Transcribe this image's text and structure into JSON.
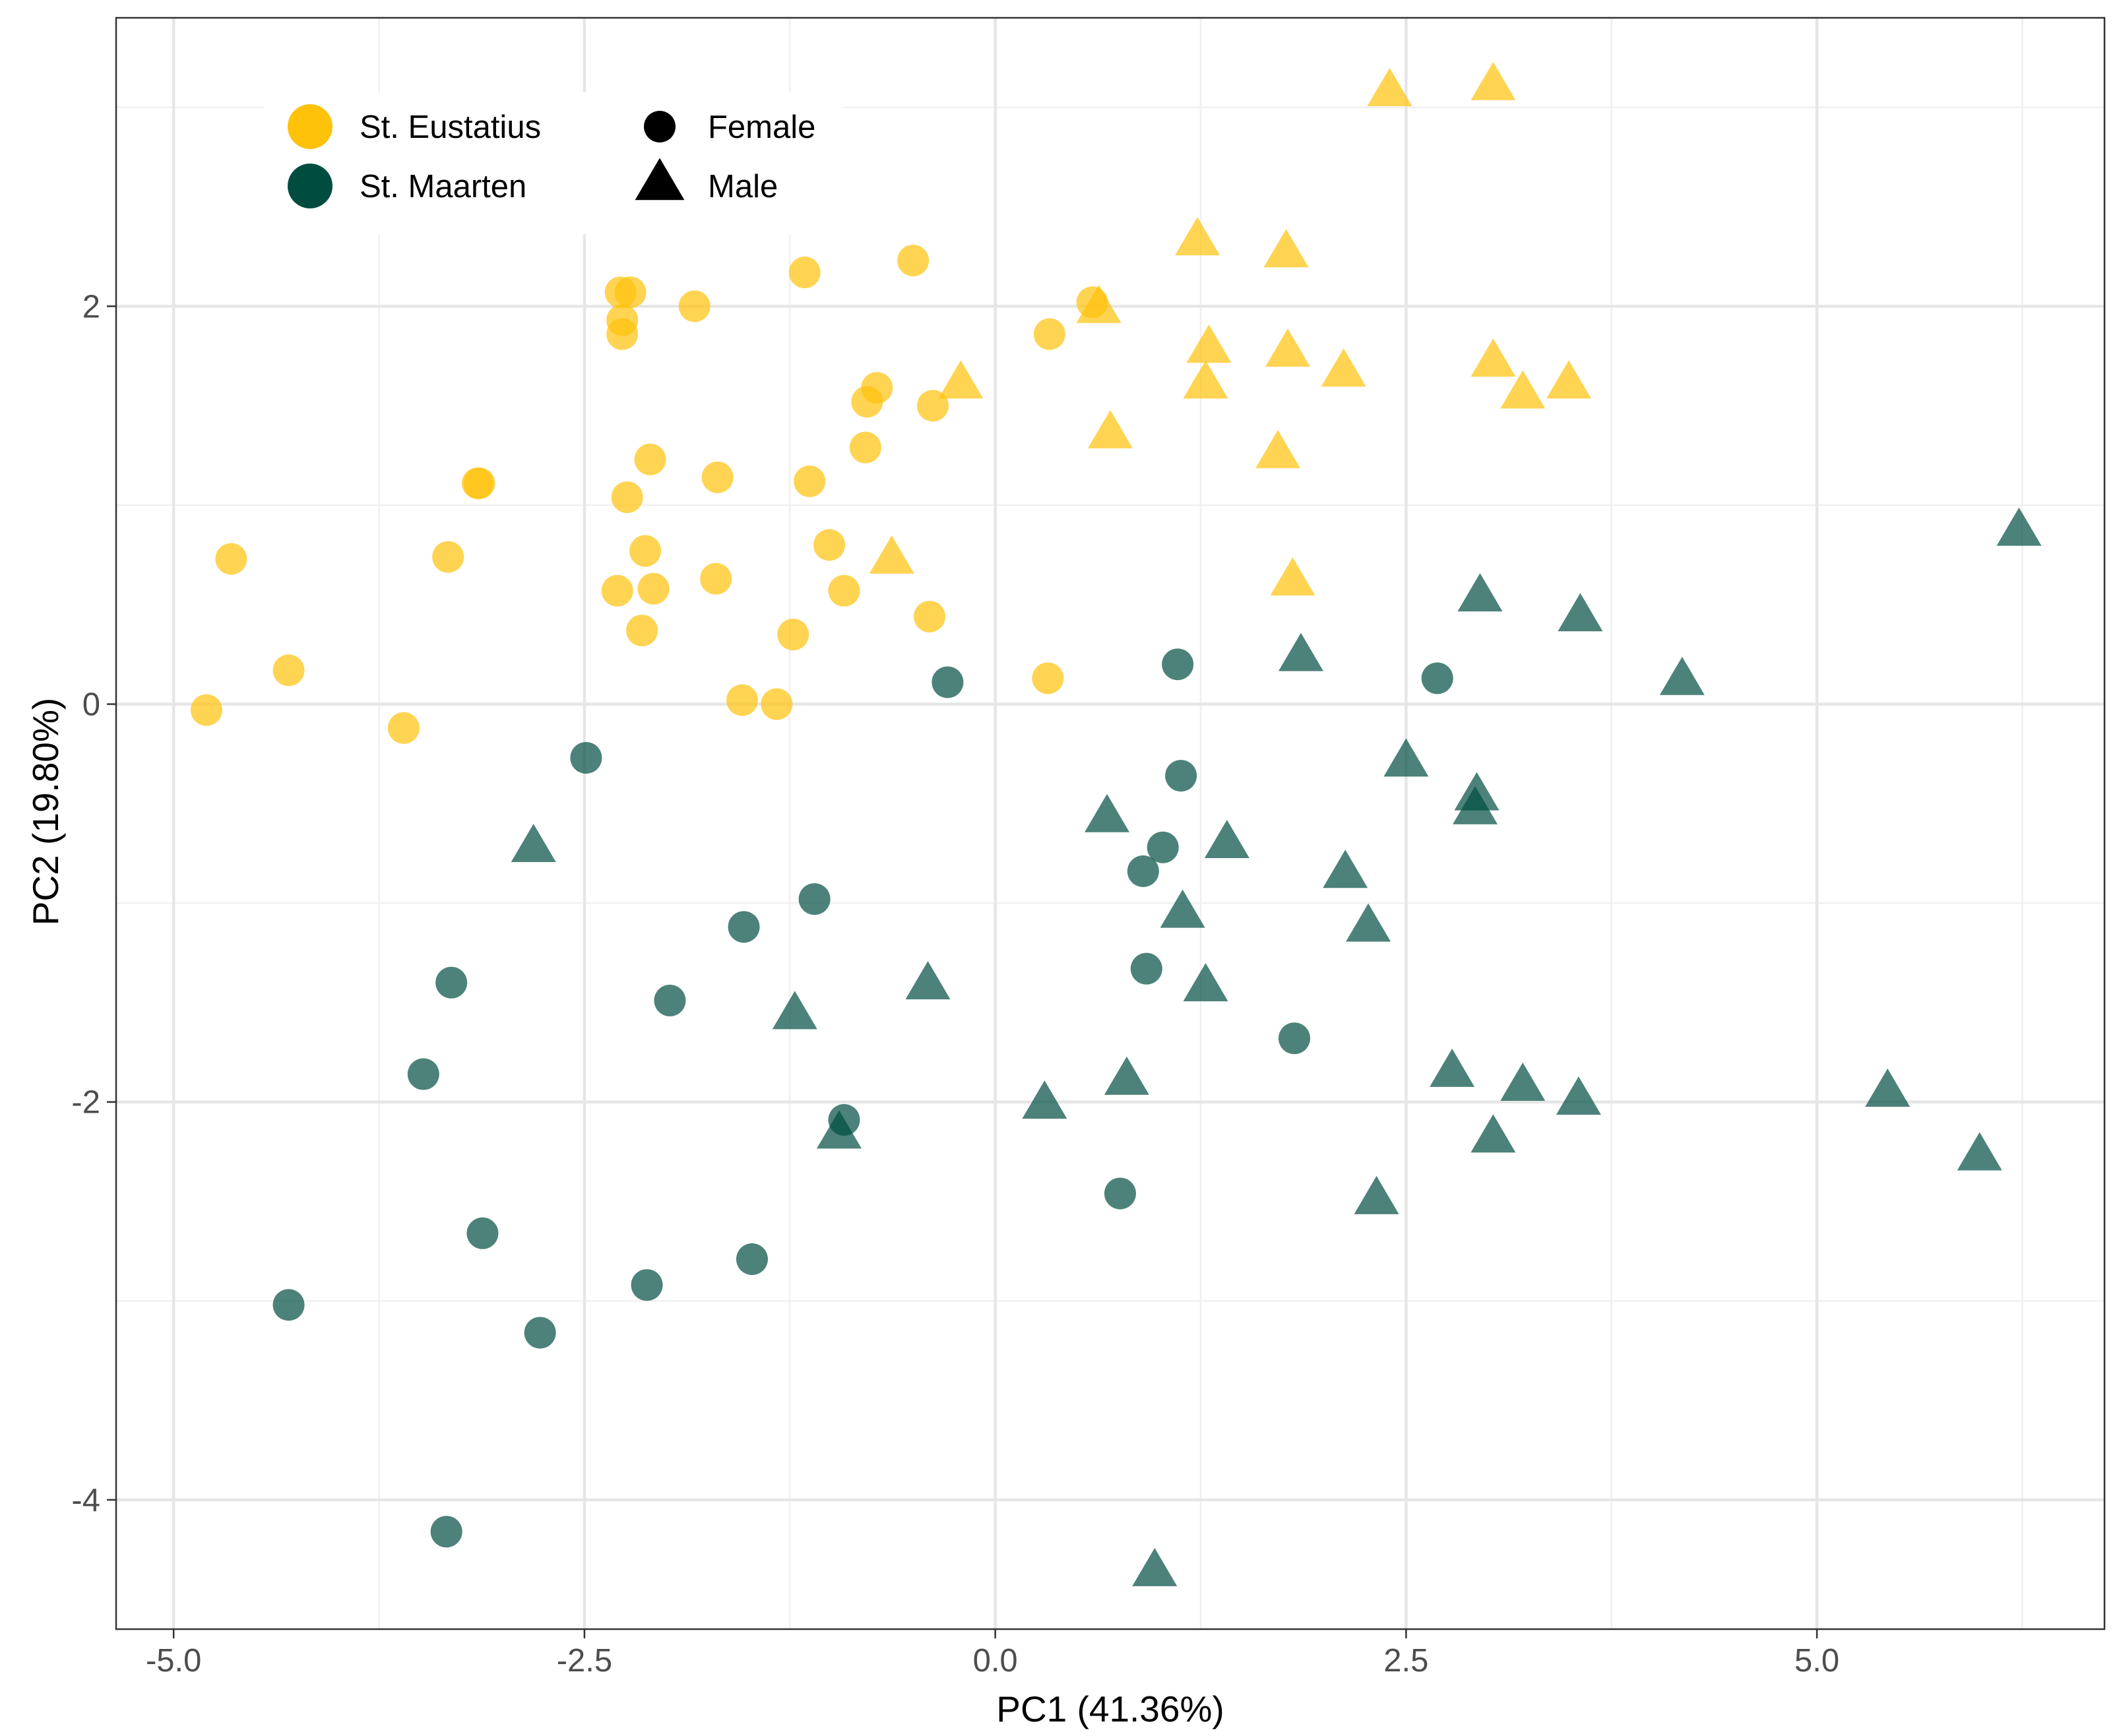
{
  "chart_data": {
    "type": "scatter",
    "title": "",
    "xlabel": "PC1 (41.36%)",
    "ylabel": "PC2 (19.80%)",
    "xlim": [
      -5.35,
      6.75
    ],
    "ylim": [
      -4.65,
      3.45
    ],
    "x_ticks": [
      -5.0,
      -2.5,
      0.0,
      2.5,
      5.0
    ],
    "x_tick_labels": [
      "-5.0",
      "-2.5",
      "0.0",
      "2.5",
      "5.0"
    ],
    "y_ticks": [
      -4,
      -2,
      0,
      2
    ],
    "y_tick_labels": [
      "-4",
      "-2",
      "0",
      "2"
    ],
    "grid": true,
    "legend_position": "top-left",
    "legend": {
      "colour": [
        {
          "label": "St. Eustatius",
          "color": "#FFC20A"
        },
        {
          "label": "St. Maarten",
          "color": "#004D40"
        }
      ],
      "shape": [
        {
          "label": "Female",
          "marker": "circle"
        },
        {
          "label": "Male",
          "marker": "triangle"
        }
      ]
    },
    "marker_opacity": 0.7,
    "series": [
      {
        "name": "St. Eustatius - Female",
        "group": "St. Eustatius",
        "sex": "Female",
        "color": "#FFC20A",
        "marker": "circle",
        "points": [
          [
            -4.8,
            -0.03
          ],
          [
            -4.65,
            0.73
          ],
          [
            -4.3,
            0.17
          ],
          [
            -3.6,
            -0.12
          ],
          [
            -3.33,
            0.74
          ],
          [
            -3.15,
            1.11
          ],
          [
            -3.14,
            1.11
          ],
          [
            -2.28,
            2.07
          ],
          [
            -2.22,
            2.07
          ],
          [
            -2.27,
            1.93
          ],
          [
            -2.27,
            1.86
          ],
          [
            -2.24,
            1.04
          ],
          [
            -2.1,
            1.23
          ],
          [
            -2.13,
            0.77
          ],
          [
            -2.3,
            0.57
          ],
          [
            -2.08,
            0.58
          ],
          [
            -2.15,
            0.37
          ],
          [
            -1.83,
            2.0
          ],
          [
            -1.69,
            1.14
          ],
          [
            -1.7,
            0.63
          ],
          [
            -1.54,
            0.02
          ],
          [
            -1.33,
            0.0
          ],
          [
            -1.16,
            2.17
          ],
          [
            -1.23,
            0.35
          ],
          [
            -1.13,
            1.12
          ],
          [
            -1.01,
            0.8
          ],
          [
            -0.92,
            0.57
          ],
          [
            -0.78,
            1.52
          ],
          [
            -0.72,
            1.59
          ],
          [
            -0.79,
            1.29
          ],
          [
            -0.5,
            2.23
          ],
          [
            -0.38,
            1.5
          ],
          [
            -0.4,
            0.44
          ],
          [
            0.33,
            1.86
          ],
          [
            0.59,
            2.02
          ],
          [
            0.32,
            0.13
          ]
        ]
      },
      {
        "name": "St. Eustatius - Male",
        "group": "St. Eustatius",
        "sex": "Male",
        "color": "#FFC20A",
        "marker": "triangle",
        "points": [
          [
            2.4,
            3.07
          ],
          [
            3.03,
            3.1
          ],
          [
            1.23,
            2.32
          ],
          [
            1.77,
            2.26
          ],
          [
            0.63,
            1.98
          ],
          [
            1.3,
            1.78
          ],
          [
            1.78,
            1.76
          ],
          [
            2.12,
            1.66
          ],
          [
            3.03,
            1.71
          ],
          [
            3.21,
            1.55
          ],
          [
            3.49,
            1.6
          ],
          [
            1.28,
            1.6
          ],
          [
            -0.21,
            1.6
          ],
          [
            0.7,
            1.35
          ],
          [
            1.72,
            1.25
          ],
          [
            -0.63,
            0.72
          ],
          [
            1.81,
            0.61
          ]
        ]
      },
      {
        "name": "St. Maarten - Female",
        "group": "St. Maarten",
        "sex": "Female",
        "color": "#004D40",
        "marker": "circle",
        "points": [
          [
            -0.29,
            0.11
          ],
          [
            1.11,
            0.2
          ],
          [
            2.69,
            0.13
          ],
          [
            -2.49,
            -0.27
          ],
          [
            1.13,
            -0.36
          ],
          [
            1.02,
            -0.72
          ],
          [
            0.9,
            -0.84
          ],
          [
            -1.1,
            -0.98
          ],
          [
            -1.53,
            -1.12
          ],
          [
            0.92,
            -1.33
          ],
          [
            -3.31,
            -1.4
          ],
          [
            -1.98,
            -1.49
          ],
          [
            1.82,
            -1.68
          ],
          [
            -3.48,
            -1.86
          ],
          [
            -0.92,
            -2.09
          ],
          [
            0.76,
            -2.46
          ],
          [
            -3.12,
            -2.66
          ],
          [
            -1.48,
            -2.79
          ],
          [
            -2.12,
            -2.92
          ],
          [
            -4.3,
            -3.02
          ],
          [
            -2.77,
            -3.16
          ],
          [
            -3.34,
            -4.16
          ]
        ]
      },
      {
        "name": "St. Maarten - Male",
        "group": "St. Maarten",
        "sex": "Male",
        "color": "#004D40",
        "marker": "triangle",
        "points": [
          [
            6.23,
            0.86
          ],
          [
            2.95,
            0.53
          ],
          [
            3.56,
            0.43
          ],
          [
            1.86,
            0.23
          ],
          [
            4.18,
            0.11
          ],
          [
            2.5,
            -0.3
          ],
          [
            2.93,
            -0.47
          ],
          [
            2.92,
            -0.54
          ],
          [
            0.68,
            -0.58
          ],
          [
            1.41,
            -0.71
          ],
          [
            -2.81,
            -0.73
          ],
          [
            2.13,
            -0.86
          ],
          [
            1.14,
            -1.06
          ],
          [
            2.27,
            -1.13
          ],
          [
            -0.41,
            -1.42
          ],
          [
            1.28,
            -1.43
          ],
          [
            -1.22,
            -1.57
          ],
          [
            2.78,
            -1.86
          ],
          [
            0.8,
            -1.9
          ],
          [
            3.21,
            -1.93
          ],
          [
            5.43,
            -1.96
          ],
          [
            0.3,
            -2.02
          ],
          [
            3.55,
            -2.0
          ],
          [
            -0.95,
            -2.17
          ],
          [
            3.03,
            -2.19
          ],
          [
            5.99,
            -2.28
          ],
          [
            2.32,
            -2.5
          ],
          [
            0.97,
            -4.37
          ]
        ]
      }
    ]
  }
}
